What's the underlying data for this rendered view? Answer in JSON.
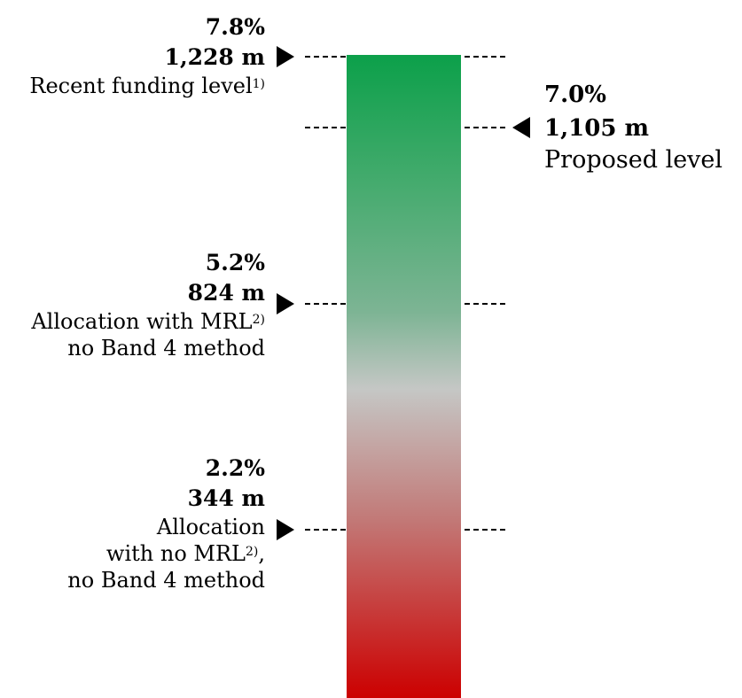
{
  "levels": {
    "recent": {
      "pct": "7.8%",
      "amount": "1,228 m",
      "label": "Recent funding level",
      "footnote": "1)"
    },
    "proposed": {
      "pct": "7.0%",
      "amount": "1,105 m",
      "label": "Proposed level"
    },
    "mrl": {
      "pct": "5.2%",
      "amount": "824 m",
      "label_line1": "Allocation with MRL",
      "footnote": "2)",
      "label_line2": "no Band 4 method"
    },
    "no_mrl": {
      "pct": "2.2%",
      "amount": "344 m",
      "label_line1": "Allocation",
      "label_line2": "with no MRL",
      "footnote": "2)",
      "label_line2_suffix": ",",
      "label_line3": "no Band 4 method"
    }
  },
  "colors": {
    "bar_top": "#0ca04a",
    "bar_middle": "#c5c7c5",
    "bar_bottom": "#cc0000"
  }
}
